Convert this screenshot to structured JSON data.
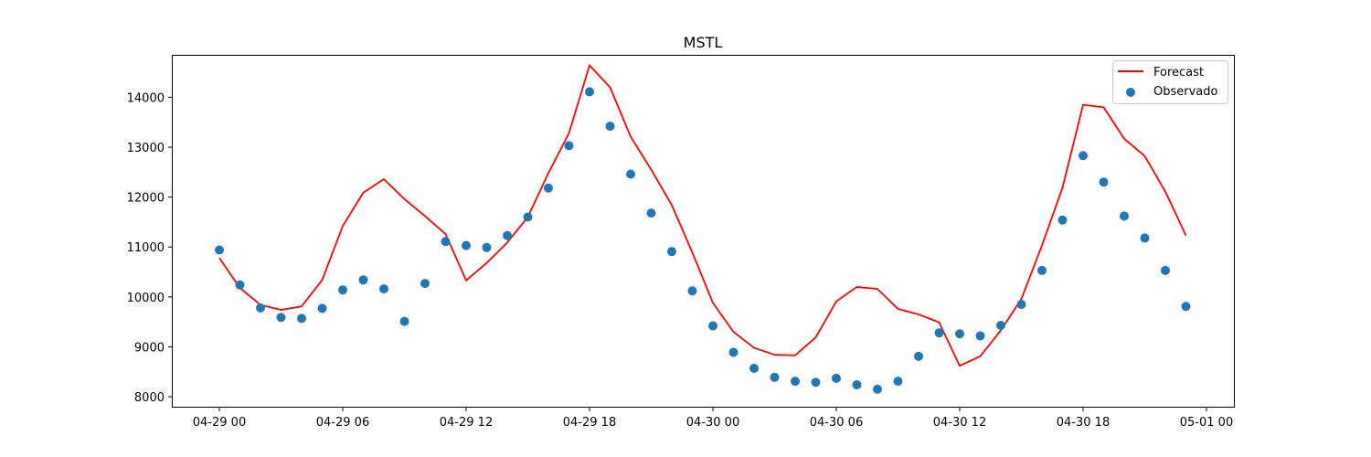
{
  "chart_data": {
    "type": "line",
    "title": "MSTL",
    "xlabel": "",
    "ylabel": "",
    "x_start": "2024-04-29 00:00",
    "x_step_hours": 1,
    "x_ticks": [
      "04-29 00",
      "04-29 06",
      "04-29 12",
      "04-29 18",
      "04-30 00",
      "04-30 06",
      "04-30 12",
      "04-30 18",
      "05-01 00"
    ],
    "y_ticks": [
      "8000",
      "9000",
      "10000",
      "11000",
      "12000",
      "13000",
      "14000"
    ],
    "ylim": [
      7800,
      14850
    ],
    "grid": false,
    "legend_position": "top-right",
    "series": [
      {
        "name": "Forecast",
        "type": "line",
        "color": "#ff0000",
        "values": [
          10780,
          10180,
          9840,
          9740,
          9810,
          10340,
          11420,
          12090,
          12360,
          11960,
          11620,
          11260,
          10330,
          10680,
          11090,
          11600,
          12480,
          13280,
          14640,
          14200,
          13210,
          12550,
          11840,
          10890,
          9880,
          9300,
          8980,
          8840,
          8830,
          9190,
          9910,
          10200,
          10160,
          9760,
          9650,
          9490,
          8620,
          8810,
          9330,
          9960,
          11030,
          12190,
          13850,
          13800,
          13170,
          12820,
          12110,
          11230
        ]
      },
      {
        "name": "Observado",
        "type": "scatter",
        "color": "#1f77b4",
        "values": [
          10940,
          10240,
          9780,
          9590,
          9570,
          9770,
          10140,
          10340,
          10160,
          9510,
          10270,
          11110,
          11030,
          10990,
          11230,
          11600,
          12180,
          13030,
          14110,
          13420,
          12460,
          11680,
          10910,
          10120,
          9420,
          8890,
          8570,
          8390,
          8310,
          8290,
          8370,
          8240,
          8150,
          8310,
          8810,
          9280,
          9260,
          9220,
          9430,
          9850,
          10530,
          11540,
          12830,
          12300,
          11620,
          11180,
          10530,
          9810
        ]
      }
    ]
  }
}
